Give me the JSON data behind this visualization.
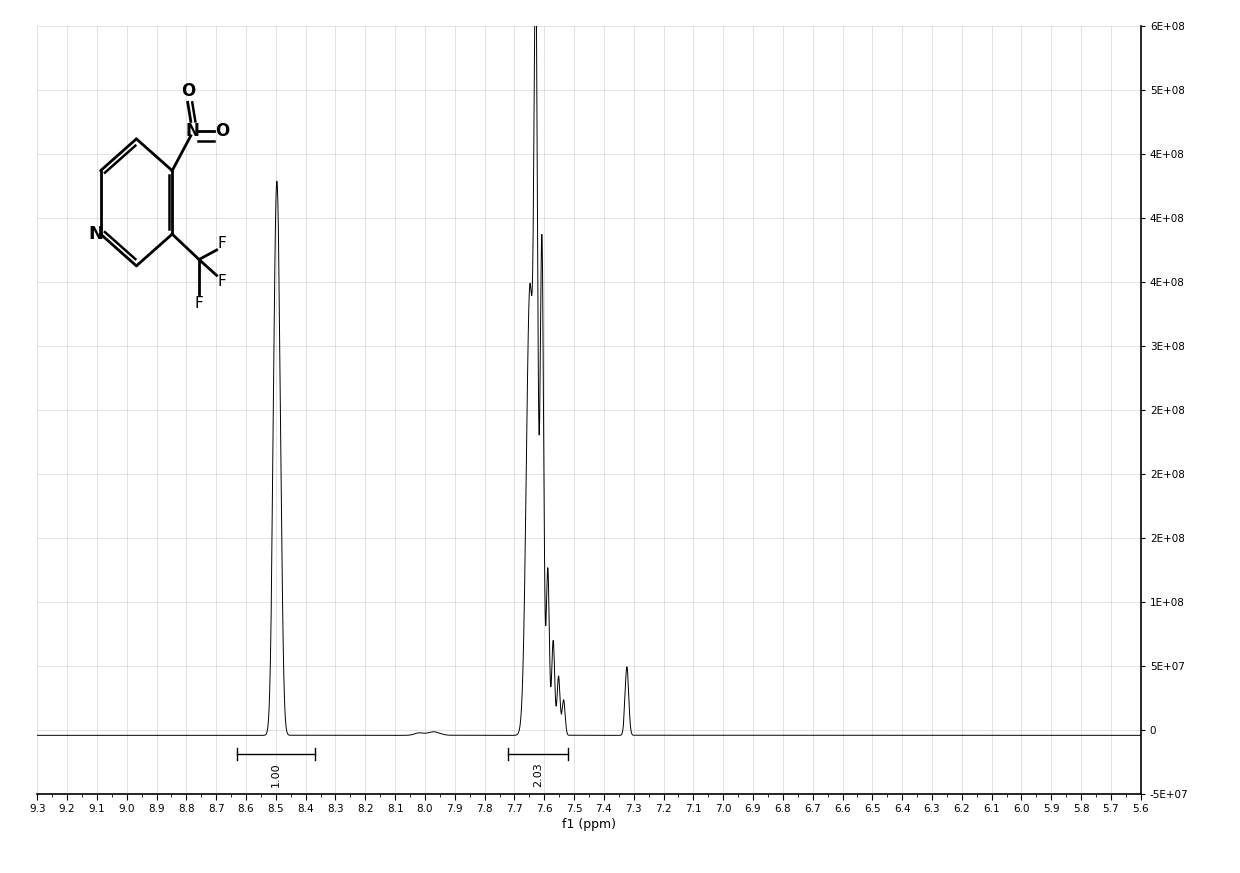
{
  "xlabel": "f1 (ppm)",
  "xmin": 5.6,
  "xmax": 9.3,
  "ymin": -50000000.0,
  "ymax": 600000000.0,
  "background_color": "#ffffff",
  "line_color": "#000000",
  "grid_color": "#b8b8b8",
  "ytick_labels_right": [
    "6E+08",
    "5E+08",
    "4E+08",
    "4E+08",
    "4E+08",
    "3E+08",
    "2E+08",
    "2E+08",
    "2E+08",
    "1E+08",
    "5E+07",
    "0",
    "-5E+07"
  ],
  "int1_xstart": 8.63,
  "int1_xend": 8.37,
  "int1_label": "1.00",
  "int2_xstart": 7.72,
  "int2_xend": 7.52,
  "int2_label": "2.03"
}
